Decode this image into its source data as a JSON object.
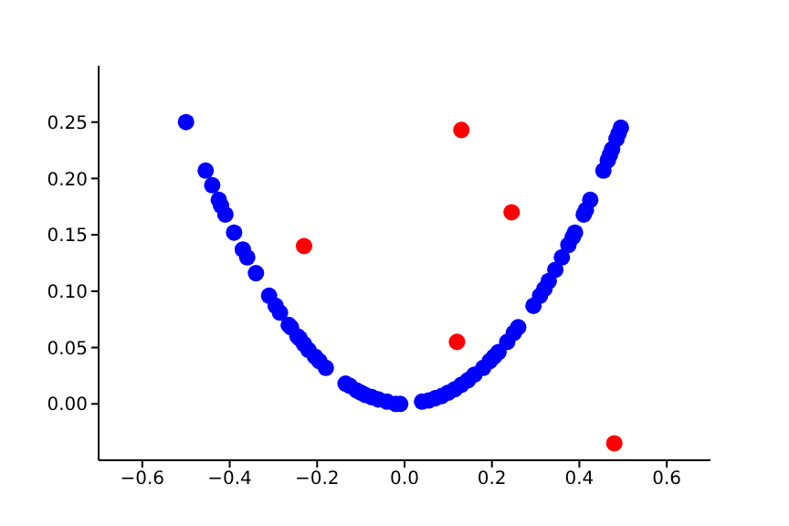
{
  "chart_data": {
    "type": "scatter",
    "marker": "circle",
    "xlim": [
      -0.7,
      0.7
    ],
    "ylim": [
      -0.05,
      0.3
    ],
    "xticks": [
      {
        "value": -0.6,
        "label": "−0.6"
      },
      {
        "value": -0.4,
        "label": "−0.4"
      },
      {
        "value": -0.2,
        "label": "−0.2"
      },
      {
        "value": 0,
        "label": "0.0"
      },
      {
        "value": 0.2,
        "label": "0.2"
      },
      {
        "value": 0.4,
        "label": "0.4"
      },
      {
        "value": 0.6,
        "label": "0.6"
      }
    ],
    "yticks": [
      {
        "value": 0,
        "label": "0.00"
      },
      {
        "value": 0.05,
        "label": "0.05"
      },
      {
        "value": 0.1,
        "label": "0.10"
      },
      {
        "value": 0.15,
        "label": "0.15"
      },
      {
        "value": 0.2,
        "label": "0.20"
      },
      {
        "value": 0.25,
        "label": "0.25"
      }
    ],
    "series": [
      {
        "color": "#0000ff",
        "x": [
          -0.5,
          -0.455,
          -0.44,
          -0.425,
          -0.42,
          -0.41,
          -0.39,
          -0.37,
          -0.36,
          -0.34,
          -0.31,
          -0.295,
          -0.285,
          -0.265,
          -0.26,
          -0.245,
          -0.24,
          -0.23,
          -0.22,
          -0.205,
          -0.195,
          -0.18,
          -0.135,
          -0.125,
          -0.11,
          -0.1,
          -0.09,
          -0.075,
          -0.06,
          -0.04,
          -0.02,
          -0.01,
          0.04,
          0.055,
          0.07,
          0.085,
          0.1,
          0.115,
          0.13,
          0.145,
          0.16,
          0.18,
          0.195,
          0.205,
          0.215,
          0.235,
          0.25,
          0.26,
          0.295,
          0.31,
          0.32,
          0.33,
          0.345,
          0.36,
          0.375,
          0.385,
          0.39,
          0.41,
          0.415,
          0.425,
          0.455,
          0.465,
          0.47,
          0.475,
          0.485,
          0.49,
          0.495
        ],
        "values": [
          0.25,
          0.207,
          0.194,
          0.181,
          0.176,
          0.168,
          0.152,
          0.137,
          0.13,
          0.116,
          0.096,
          0.087,
          0.081,
          0.07,
          0.068,
          0.06,
          0.058,
          0.053,
          0.048,
          0.042,
          0.038,
          0.032,
          0.018,
          0.016,
          0.012,
          0.01,
          0.008,
          0.006,
          0.004,
          0.002,
          0.0,
          0.0,
          0.002,
          0.003,
          0.005,
          0.007,
          0.01,
          0.013,
          0.017,
          0.021,
          0.026,
          0.032,
          0.038,
          0.042,
          0.046,
          0.055,
          0.063,
          0.068,
          0.087,
          0.096,
          0.102,
          0.109,
          0.119,
          0.13,
          0.141,
          0.148,
          0.152,
          0.168,
          0.172,
          0.181,
          0.207,
          0.216,
          0.221,
          0.226,
          0.235,
          0.24,
          0.245
        ]
      },
      {
        "color": "#ff0000",
        "x": [
          -0.23,
          0.13,
          0.245,
          0.12,
          0.48
        ],
        "values": [
          0.14,
          0.243,
          0.17,
          0.055,
          -0.035
        ]
      }
    ]
  }
}
